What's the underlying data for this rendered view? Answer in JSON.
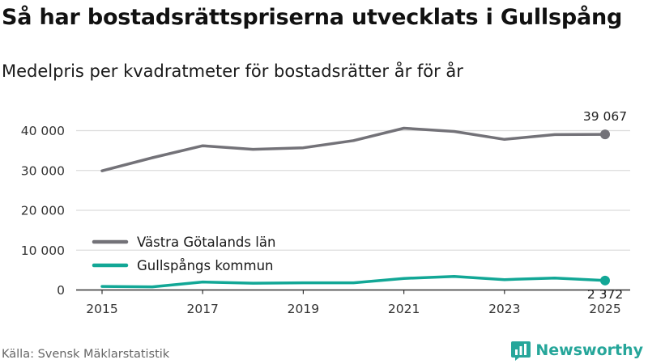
{
  "title": "Så har bostadsrättspriserna utvecklats i Gullspång",
  "subtitle": "Medelpris per kvadratmeter för bostadsrätter år för år",
  "source": "Källa: Svensk Mäklarstatistik",
  "brand": "Newsworthy",
  "icons": {
    "brand_logo": "bar-chart-logo-icon"
  },
  "colors": {
    "series_1": "#737278",
    "series_2": "#12a796",
    "grid": "#dcdcdc",
    "axis": "#333333",
    "brand": "#26a69a"
  },
  "chart_data": {
    "type": "line",
    "title": "Så har bostadsrättspriserna utvecklats i Gullspång",
    "subtitle": "Medelpris per kvadratmeter för bostadsrätter år för år",
    "xlabel": "",
    "ylabel": "",
    "x": [
      2015,
      2016,
      2017,
      2018,
      2019,
      2020,
      2021,
      2022,
      2023,
      2024,
      2025
    ],
    "xticks": [
      2015,
      2017,
      2019,
      2021,
      2023,
      2025
    ],
    "yticks": [
      0,
      10000,
      20000,
      30000,
      40000
    ],
    "ytick_labels": [
      "0",
      "10 000",
      "20 000",
      "30 000",
      "40 000"
    ],
    "xlim": [
      2015,
      2025
    ],
    "ylim": [
      0,
      42000
    ],
    "grid": true,
    "legend_position": "bottom-left",
    "series": [
      {
        "name": "Västra Götalands län",
        "color": "#737278",
        "values": [
          29900,
          33200,
          36200,
          35300,
          35700,
          37500,
          40600,
          39800,
          37800,
          39000,
          39067
        ],
        "end_label": "39 067"
      },
      {
        "name": "Gullspångs kommun",
        "color": "#12a796",
        "values": [
          900,
          800,
          2000,
          1700,
          1800,
          1800,
          2900,
          3400,
          2600,
          3000,
          2372
        ],
        "end_label": "2 372"
      }
    ]
  }
}
